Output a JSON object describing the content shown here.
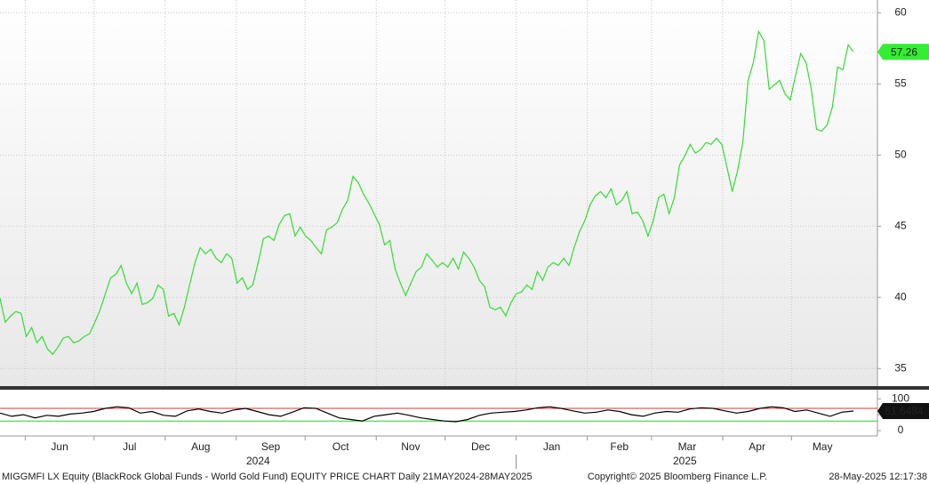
{
  "chart_data": [
    {
      "type": "line",
      "series": [
        {
          "color": "#33dd33",
          "values": [
            39.94,
            38.25,
            38.69,
            39.0,
            38.88,
            37.25,
            37.88,
            36.81,
            37.25,
            36.38,
            36.0,
            36.5,
            37.13,
            37.25,
            36.81,
            36.94,
            37.25,
            37.44,
            38.25,
            39.13,
            40.25,
            41.38,
            41.63,
            42.25,
            41.0,
            40.25,
            41.0,
            39.5,
            39.63,
            39.94,
            40.88,
            40.56,
            38.69,
            38.88,
            38.06,
            39.31,
            40.88,
            42.44,
            43.5,
            43.06,
            43.38,
            42.75,
            42.44,
            43.06,
            42.75,
            41.0,
            41.38,
            40.56,
            40.88,
            42.44,
            44.13,
            44.31,
            44.0,
            45.13,
            45.75,
            45.88,
            44.31,
            44.94,
            44.31,
            44.0,
            43.5,
            43.06,
            44.75,
            44.94,
            45.25,
            46.19,
            46.81,
            48.5,
            48.06,
            47.25,
            46.63,
            45.88,
            45.13,
            43.69,
            44.0,
            42.0,
            41.0,
            40.13,
            41.0,
            41.81,
            42.13,
            43.06,
            42.63,
            42.13,
            42.44,
            42.13,
            42.75,
            42.0,
            43.19,
            42.75,
            42.13,
            41.19,
            40.75,
            39.31,
            39.13,
            39.31,
            38.69,
            39.63,
            40.25,
            40.38,
            40.88,
            40.56,
            41.81,
            41.19,
            42.13,
            42.44,
            42.25,
            42.75,
            42.25,
            43.5,
            44.63,
            45.38,
            46.5,
            47.13,
            47.44,
            47.0,
            47.63,
            46.5,
            46.81,
            47.44,
            45.88,
            46.0,
            45.38,
            44.31,
            45.38,
            47.0,
            47.25,
            45.88,
            47.0,
            49.31,
            49.94,
            50.75,
            50.13,
            50.38,
            50.88,
            50.75,
            51.19,
            50.75,
            49.13,
            47.44,
            48.88,
            50.88,
            55.25,
            56.5,
            58.69,
            58.06,
            54.63,
            54.94,
            55.25,
            54.31,
            53.88,
            55.56,
            57.13,
            56.5,
            54.63,
            51.81,
            51.69,
            52.13,
            53.38,
            56.19,
            56.0,
            57.75,
            57.26
          ]
        }
      ],
      "ylim": [
        33.7,
        60.9
      ],
      "yticks": [
        35,
        40,
        45,
        50,
        55,
        60
      ],
      "grid": true
    },
    {
      "type": "line",
      "series": [
        {
          "color": "#000000",
          "values": [
            55,
            45,
            50,
            40,
            48,
            45,
            52,
            55,
            60,
            70,
            75,
            72,
            55,
            60,
            48,
            45,
            62,
            68,
            60,
            55,
            65,
            70,
            60,
            50,
            45,
            58,
            72,
            70,
            55,
            40,
            35,
            30,
            45,
            50,
            55,
            48,
            40,
            35,
            30,
            28,
            35,
            48,
            55,
            58,
            60,
            65,
            72,
            75,
            70,
            62,
            55,
            58,
            65,
            60,
            50,
            45,
            55,
            60,
            58,
            68,
            72,
            70,
            62,
            55,
            60,
            70,
            75,
            72,
            60,
            65,
            55,
            45,
            58,
            61.6484
          ]
        }
      ],
      "ylim": [
        -17,
        126
      ],
      "yticks": [
        0,
        50,
        100
      ],
      "reference_lines": [
        {
          "value": 70,
          "color": "#e03030"
        },
        {
          "value": 30,
          "color": "#33cc33"
        }
      ]
    }
  ],
  "x_axis": {
    "xlim": [
      "2024-05-21",
      "2025-05-28"
    ],
    "xticks": [
      {
        "value": "2024-06",
        "label": "Jun"
      },
      {
        "value": "2024-07",
        "label": "Jul"
      },
      {
        "value": "2024-08",
        "label": "Aug"
      },
      {
        "value": "2024-09",
        "label": "Sep"
      },
      {
        "value": "2024-10",
        "label": "Oct"
      },
      {
        "value": "2024-11",
        "label": "Nov"
      },
      {
        "value": "2024-12",
        "label": "Dec"
      },
      {
        "value": "2025-01",
        "label": "Jan"
      },
      {
        "value": "2025-02",
        "label": "Feb"
      },
      {
        "value": "2025-03",
        "label": "Mar"
      },
      {
        "value": "2025-04",
        "label": "Apr"
      },
      {
        "value": "2025-05",
        "label": "May"
      }
    ],
    "years": [
      "2024",
      "2025"
    ]
  },
  "footer": {
    "left": "MIGGMFI LX Equity (BlackRock Global Funds - World Gold Fund) EQUITY PRICE CHART  Daily 21MAY2024-28MAY2025",
    "center": "Copyright© 2025 Bloomberg Finance L.P.",
    "right": "28-May-2025 12:17:38"
  }
}
